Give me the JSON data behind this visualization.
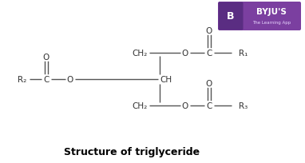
{
  "title": "Structure of triglyceride",
  "title_fontsize": 9,
  "background_color": "#ffffff",
  "line_color": "#555555",
  "text_color": "#333333",
  "byju_box_color": "#7b3fa0",
  "byju_b_color": "#5a2d82",
  "byju_text": "BYJU'S",
  "byju_subtext": "The Learning App",
  "figsize": [
    3.82,
    2.05
  ],
  "dpi": 100
}
